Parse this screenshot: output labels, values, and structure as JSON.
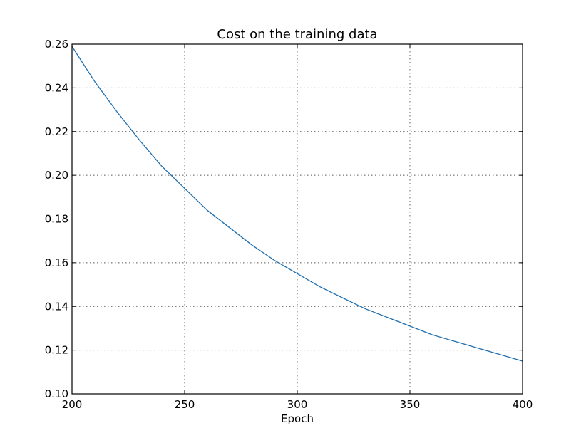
{
  "chart_data": {
    "type": "line",
    "title": "Cost on the training data",
    "xlabel": "Epoch",
    "ylabel": "",
    "xlim": [
      200,
      400
    ],
    "ylim": [
      0.1,
      0.26
    ],
    "x_ticks": [
      200,
      250,
      300,
      350,
      400
    ],
    "x_tick_labels": [
      "200",
      "250",
      "300",
      "350",
      "400"
    ],
    "y_ticks": [
      0.1,
      0.12,
      0.14,
      0.16,
      0.18,
      0.2,
      0.22,
      0.24,
      0.26
    ],
    "y_tick_labels": [
      "0.10",
      "0.12",
      "0.14",
      "0.16",
      "0.18",
      "0.20",
      "0.22",
      "0.24",
      "0.26"
    ],
    "grid": true,
    "legend": "none",
    "series": [
      {
        "color": "#1f6fb0",
        "x": [
          200,
          210,
          220,
          230,
          240,
          250,
          260,
          270,
          280,
          290,
          300,
          310,
          320,
          330,
          340,
          350,
          360,
          370,
          380,
          390,
          400
        ],
        "y": [
          0.259,
          0.243,
          0.229,
          0.216,
          0.204,
          0.194,
          0.184,
          0.176,
          0.168,
          0.161,
          0.155,
          0.149,
          0.144,
          0.139,
          0.135,
          0.131,
          0.127,
          0.124,
          0.121,
          0.118,
          0.115
        ]
      }
    ]
  }
}
